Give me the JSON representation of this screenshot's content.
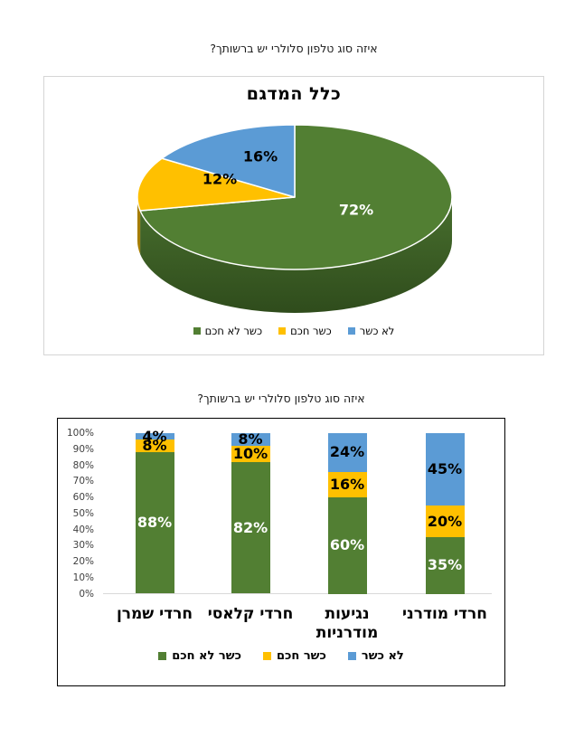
{
  "page_titles": {
    "top": "איזה סוג טלפון סלולרי יש ברשותך?",
    "above_bar_chart": "איזה סוג טלפון סלולרי יש ברשותך?"
  },
  "colors": {
    "green": "#527f33",
    "green_side_dark": "#2f4c1c",
    "yellow": "#ffc000",
    "yellow_side_dark": "#a67d00",
    "blue": "#5b9bd5",
    "pie_box_border": "#d5d5d5",
    "bar_box_border": "#000000",
    "axis_line": "#d9d9d9",
    "tick_text": "#3f3f3f"
  },
  "chart_data": [
    {
      "type": "pie",
      "effect": "3d",
      "title": "כלל המדגם",
      "labels": [
        "כשר לא חכם",
        "כשר חכם",
        "לא כשר"
      ],
      "values": [
        72,
        12,
        16
      ],
      "colors": [
        "#527f33",
        "#ffc000",
        "#5b9bd5"
      ],
      "data_labels": [
        "72%",
        "12%",
        "16%"
      ],
      "start_angle_deg": 0,
      "direction": "clockwise",
      "legend_position": "bottom"
    },
    {
      "type": "bar",
      "stacked": true,
      "percent_stacked": true,
      "title": "איזה סוג טלפון סלולרי יש ברשותך?",
      "categories": [
        "חרדי שמרן",
        "חרדי קלאסי",
        "נגיעות\nמודרניות",
        "חרדי מודרני"
      ],
      "series": [
        {
          "name": "כשר לא חכם",
          "color": "#527f33",
          "values": [
            88,
            82,
            60,
            35
          ]
        },
        {
          "name": "כשר חכם",
          "color": "#ffc000",
          "values": [
            8,
            10,
            16,
            20
          ]
        },
        {
          "name": "לא כשר",
          "color": "#5b9bd5",
          "values": [
            4,
            8,
            24,
            45
          ]
        }
      ],
      "y_ticks": [
        "0%",
        "10%",
        "20%",
        "30%",
        "40%",
        "50%",
        "60%",
        "70%",
        "80%",
        "90%",
        "100%"
      ],
      "ylim": [
        0,
        100
      ],
      "grid": false,
      "legend_position": "bottom"
    }
  ]
}
